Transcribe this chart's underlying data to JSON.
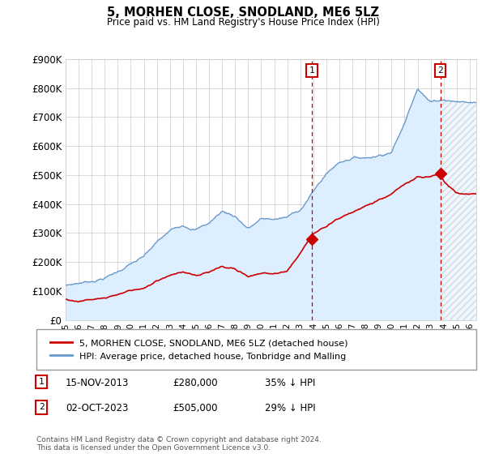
{
  "title": "5, MORHEN CLOSE, SNODLAND, ME6 5LZ",
  "subtitle": "Price paid vs. HM Land Registry's House Price Index (HPI)",
  "legend_line1": "5, MORHEN CLOSE, SNODLAND, ME6 5LZ (detached house)",
  "legend_line2": "HPI: Average price, detached house, Tonbridge and Malling",
  "annotation1_label": "1",
  "annotation1_date": "15-NOV-2013",
  "annotation1_price": "£280,000",
  "annotation1_hpi": "35% ↓ HPI",
  "annotation1_year": 2013.88,
  "annotation1_value": 280000,
  "annotation2_label": "2",
  "annotation2_date": "02-OCT-2023",
  "annotation2_price": "£505,000",
  "annotation2_hpi": "29% ↓ HPI",
  "annotation2_year": 2023.75,
  "annotation2_value": 505000,
  "footer": "Contains HM Land Registry data © Crown copyright and database right 2024.\nThis data is licensed under the Open Government Licence v3.0.",
  "ylim": [
    0,
    900000
  ],
  "yticks": [
    0,
    100000,
    200000,
    300000,
    400000,
    500000,
    600000,
    700000,
    800000,
    900000
  ],
  "xlim_start": 1995.0,
  "xlim_end": 2026.5,
  "red_color": "#cc0000",
  "blue_color": "#6699cc",
  "hpi_fill_color": "#ddeeff",
  "bg_color": "#ffffff",
  "grid_color": "#cccccc",
  "title_color": "#000000",
  "annot_color": "#cc0000",
  "hpi_pts": {
    "1995": 120000,
    "1996": 128000,
    "1997": 135000,
    "1998": 148000,
    "1999": 168000,
    "2000": 195000,
    "2001": 215000,
    "2002": 260000,
    "2003": 295000,
    "2004": 318000,
    "2005": 308000,
    "2006": 328000,
    "2007": 368000,
    "2008": 352000,
    "2009": 310000,
    "2010": 340000,
    "2011": 338000,
    "2012": 342000,
    "2013": 368000,
    "2014": 430000,
    "2015": 490000,
    "2016": 530000,
    "2017": 548000,
    "2018": 548000,
    "2019": 558000,
    "2020": 575000,
    "2021": 670000,
    "2022": 800000,
    "2023": 750000,
    "2024": 760000,
    "2025": 755000,
    "2026": 750000
  },
  "price_pts": {
    "1995": 72000,
    "1996": 68000,
    "1997": 72000,
    "1998": 78000,
    "1999": 88000,
    "2000": 100000,
    "2001": 108000,
    "2002": 130000,
    "2003": 148000,
    "2004": 158000,
    "2005": 148000,
    "2006": 155000,
    "2007": 178000,
    "2008": 170000,
    "2009": 148000,
    "2010": 160000,
    "2011": 158000,
    "2012": 160000,
    "2013.88": 280000,
    "2014": 290000,
    "2015": 318000,
    "2016": 348000,
    "2017": 368000,
    "2018": 388000,
    "2019": 408000,
    "2020": 428000,
    "2021": 460000,
    "2022": 490000,
    "2023.75": 505000,
    "2024": 480000,
    "2025": 440000,
    "2026": 435000
  }
}
